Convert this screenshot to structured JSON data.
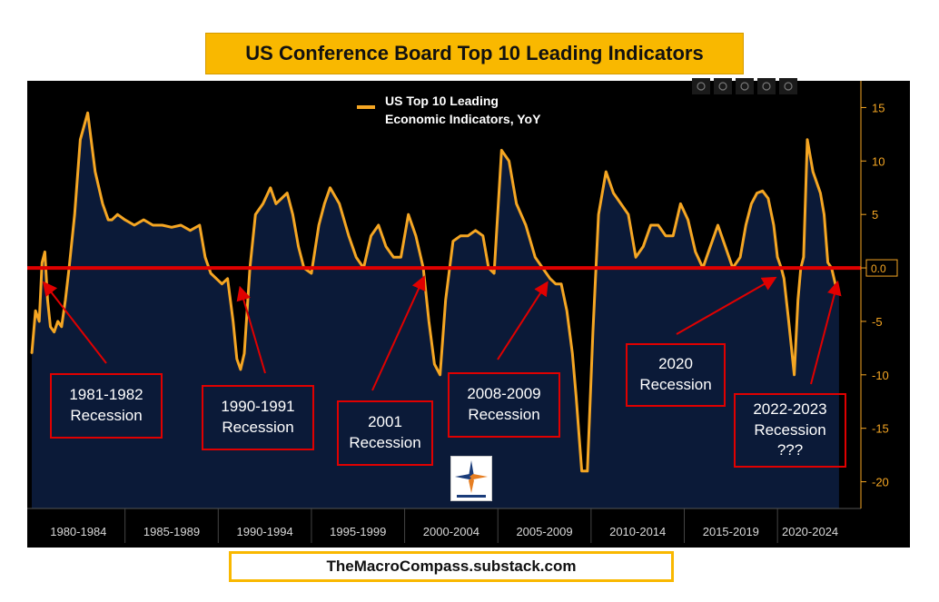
{
  "header": {
    "title": "US Conference Board Top 10 Leading Indicators"
  },
  "footer": {
    "source": "TheMacroCompass.substack.com"
  },
  "colors": {
    "series": "#f5a623",
    "zero_line": "#e00000",
    "plot_bg": "#000000",
    "area_fill": "#0b1a38",
    "title_bg": "#f9b800"
  },
  "toolbar": {
    "icons": [
      "crosshair-icon",
      "pencil-icon",
      "trash-icon",
      "notes-icon",
      "search-icon"
    ]
  },
  "logo": {
    "name": "the-macro-compass-logo"
  },
  "chart_data": {
    "type": "area",
    "legend": {
      "label_line1": "US Top 10 Leading",
      "label_line2": "Economic Indicators, YoY",
      "placement": "top-center"
    },
    "ylim": [
      -22.5,
      17.5
    ],
    "yticks": [
      15,
      10,
      5,
      0,
      -5,
      -10,
      -15,
      -20
    ],
    "zero_label": "0.0",
    "x_periods": [
      "1980-1984",
      "1985-1989",
      "1990-1994",
      "1995-1999",
      "2000-2004",
      "2005-2009",
      "2010-2014",
      "2015-2019",
      "2020-2024"
    ],
    "xlim": [
      1980.0,
      2023.5
    ],
    "series": [
      {
        "x": [
          1980.0,
          1980.2,
          1980.4,
          1980.55,
          1980.7,
          1980.85,
          1981.0,
          1981.2,
          1981.4,
          1981.6,
          1981.8,
          1982.0,
          1982.3,
          1982.6,
          1983.0,
          1983.4,
          1983.8,
          1984.1,
          1984.3,
          1984.6,
          1985.0,
          1985.5,
          1986.0,
          1986.5,
          1987.0,
          1987.5,
          1988.0,
          1988.5,
          1989.0,
          1989.3,
          1989.6,
          1989.9,
          1990.2,
          1990.5,
          1990.8,
          1991.0,
          1991.2,
          1991.4,
          1991.7,
          1992.0,
          1992.4,
          1992.8,
          1993.1,
          1993.4,
          1993.7,
          1994.0,
          1994.3,
          1994.6,
          1995.0,
          1995.4,
          1995.7,
          1996.0,
          1996.5,
          1997.0,
          1997.4,
          1997.8,
          1998.2,
          1998.6,
          1999.0,
          1999.4,
          1999.8,
          2000.2,
          2000.6,
          2001.0,
          2001.3,
          2001.6,
          2001.9,
          2002.2,
          2002.6,
          2003.0,
          2003.4,
          2003.8,
          2004.2,
          2004.5,
          2004.8,
          2005.2,
          2005.6,
          2006.0,
          2006.5,
          2007.0,
          2007.4,
          2007.8,
          2008.1,
          2008.4,
          2008.7,
          2009.0,
          2009.2,
          2009.5,
          2009.8,
          2010.1,
          2010.4,
          2010.8,
          2011.2,
          2011.6,
          2012.0,
          2012.4,
          2012.8,
          2013.2,
          2013.6,
          2014.0,
          2014.4,
          2014.8,
          2015.2,
          2015.6,
          2016.0,
          2016.4,
          2016.8,
          2017.2,
          2017.6,
          2018.0,
          2018.3,
          2018.6,
          2018.9,
          2019.2,
          2019.5,
          2019.8,
          2020.0,
          2020.2,
          2020.35,
          2020.6,
          2020.9,
          2021.1,
          2021.25,
          2021.4,
          2021.6,
          2021.9,
          2022.1,
          2022.3,
          2022.5,
          2022.7,
          2022.9,
          2023.1,
          2023.3
        ],
        "y": [
          -8,
          -4,
          -5,
          0.5,
          1.5,
          -3,
          -5.5,
          -6,
          -5,
          -5.5,
          -3,
          0,
          5,
          12,
          14.5,
          9,
          6,
          4.5,
          4.5,
          5,
          4.5,
          4,
          4.5,
          4,
          4,
          3.8,
          4,
          3.5,
          4,
          1,
          -0.5,
          -1,
          -1.5,
          -1,
          -5,
          -8.5,
          -9.5,
          -8,
          0,
          5,
          6,
          7.5,
          6,
          6.5,
          7,
          5,
          2,
          0,
          -0.5,
          4,
          6,
          7.5,
          6,
          3,
          1,
          0,
          3,
          4,
          2,
          1,
          1,
          5,
          3,
          0,
          -5,
          -9,
          -10,
          -3,
          2.5,
          3,
          3,
          3.5,
          3,
          0,
          -0.5,
          11,
          10,
          6,
          4,
          1,
          0,
          -1,
          -1.5,
          -1.5,
          -4,
          -8,
          -12,
          -19,
          -19,
          -6,
          5,
          9,
          7,
          6,
          5,
          1,
          2,
          4,
          4,
          3,
          3,
          6,
          4.5,
          1.5,
          0,
          2,
          4,
          2,
          0,
          1,
          4,
          6,
          7,
          7.2,
          6.5,
          4,
          1,
          0,
          -1,
          -5,
          -10,
          -3,
          0,
          1,
          12,
          9,
          8,
          7,
          5,
          0.5,
          0,
          -1.5,
          -2.5
        ]
      }
    ],
    "annotations": [
      {
        "line1": "1981-1982",
        "line2": "Recession",
        "line3": "",
        "target_x": 1980.7,
        "target_y": -1.5
      },
      {
        "line1": "1990-1991",
        "line2": "Recession",
        "line3": "",
        "target_x": 1991.2,
        "target_y": -2.0
      },
      {
        "line1": "2001",
        "line2": "Recession",
        "line3": "",
        "target_x": 2001.0,
        "target_y": -1.0
      },
      {
        "line1": "2008-2009",
        "line2": "Recession",
        "line3": "",
        "target_x": 2007.6,
        "target_y": -1.5
      },
      {
        "line1": "2020",
        "line2": "Recession",
        "line3": "",
        "target_x": 2019.8,
        "target_y": -1.0
      },
      {
        "line1": "2022-2023",
        "line2": "Recession",
        "line3": "???",
        "target_x": 2023.2,
        "target_y": -1.5
      }
    ]
  }
}
